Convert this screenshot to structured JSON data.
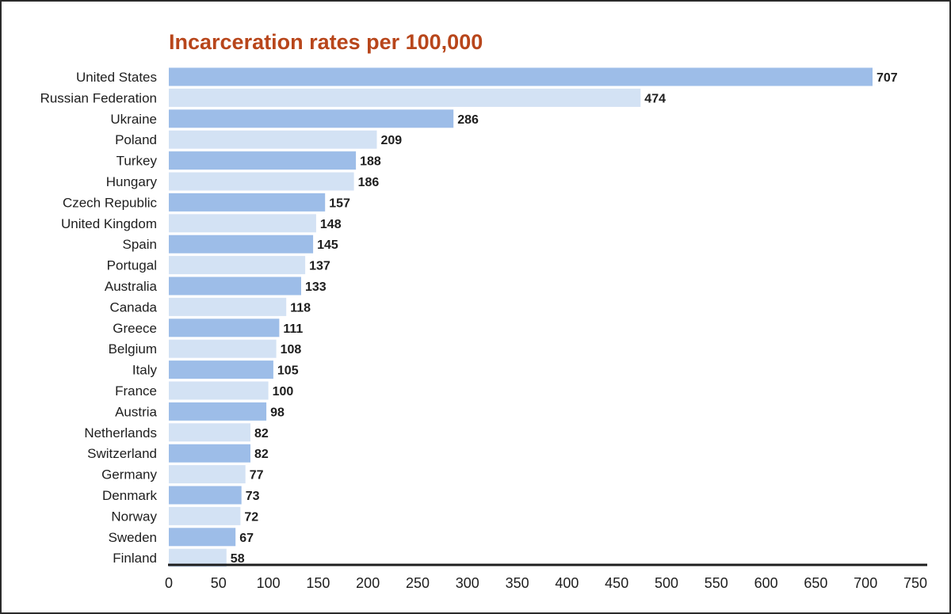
{
  "chart_data": {
    "type": "bar",
    "orientation": "horizontal",
    "title": "Incarceration rates per 100,000",
    "xlabel": "",
    "ylabel": "",
    "categories": [
      "United States",
      "Russian Federation",
      "Ukraine",
      "Poland",
      "Turkey",
      "Hungary",
      "Czech Republic",
      "United Kingdom",
      "Spain",
      "Portugal",
      "Australia",
      "Canada",
      "Greece",
      "Belgium",
      "Italy",
      "France",
      "Austria",
      "Netherlands",
      "Switzerland",
      "Germany",
      "Denmark",
      "Norway",
      "Sweden",
      "Finland"
    ],
    "values": [
      707,
      474,
      286,
      209,
      188,
      186,
      157,
      148,
      145,
      137,
      133,
      118,
      111,
      108,
      105,
      100,
      98,
      82,
      82,
      77,
      73,
      72,
      67,
      58
    ],
    "value_labels": [
      "707",
      "474",
      "286",
      "209",
      "188",
      "186",
      "157",
      "148",
      "145",
      "137",
      "133",
      "118",
      "111",
      "108",
      "105",
      "100",
      "98",
      "82",
      "82",
      "77",
      "73",
      "72",
      "67",
      "58"
    ],
    "xlim": [
      0,
      750
    ],
    "xticks": [
      0,
      50,
      100,
      150,
      200,
      250,
      300,
      350,
      400,
      450,
      500,
      550,
      600,
      650,
      700,
      750
    ],
    "xtick_labels": [
      "0",
      "50",
      "100",
      "150",
      "200",
      "250",
      "300",
      "350",
      "400",
      "450",
      "500",
      "550",
      "600",
      "650",
      "700",
      "750"
    ],
    "grid": false,
    "legend": "none",
    "colors": {
      "bar_dark": "#9dbde8",
      "bar_light": "#d3e2f4",
      "title": "#b8461b",
      "axis": "#1e1e1e",
      "text": "#1e1e1e"
    }
  }
}
